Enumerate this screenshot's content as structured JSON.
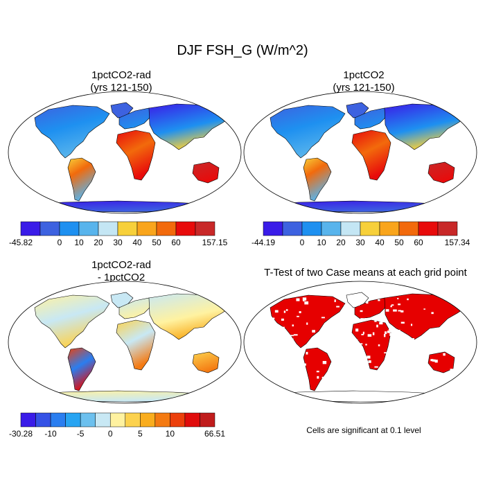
{
  "main_title": "DJF FSH_G (W/m^2)",
  "panels": [
    {
      "id": "a",
      "title_line1": "1pctCO2-rad",
      "title_line2": "(yrs 121-150)"
    },
    {
      "id": "b",
      "title_line1": "1pctCO2",
      "title_line2": "(yrs 121-150)"
    },
    {
      "id": "c",
      "title_line1": "1pctCO2-rad",
      "title_line2": "- 1pctCO2"
    },
    {
      "id": "d",
      "title_line1": "T-Test of two Case means at each grid point",
      "title_line2": ""
    }
  ],
  "note": "Cells are significant at 0.1 level",
  "chart_data": [
    {
      "type": "heatmap",
      "title": "1pctCO2-rad (yrs 121-150)",
      "colorbar": {
        "colors": [
          "#3a1ce8",
          "#3d62e0",
          "#1e90f0",
          "#58b4ec",
          "#c4e6f4",
          "#f7d03a",
          "#f9a51c",
          "#f26a0c",
          "#e80b0b",
          "#c82828"
        ],
        "labels": [
          "-45.82",
          "",
          "0",
          "10",
          "20",
          "30",
          "40",
          "50",
          "60",
          "157.15"
        ],
        "min": -45.82,
        "max": 157.15
      }
    },
    {
      "type": "heatmap",
      "title": "1pctCO2 (yrs 121-150)",
      "colorbar": {
        "colors": [
          "#3a1ce8",
          "#3d62e0",
          "#1e90f0",
          "#58b4ec",
          "#c4e6f4",
          "#f7d03a",
          "#f9a51c",
          "#f26a0c",
          "#e80b0b",
          "#c82828"
        ],
        "labels": [
          "-44.19",
          "",
          "0",
          "10",
          "20",
          "30",
          "40",
          "50",
          "60",
          "157.34"
        ],
        "min": -44.19,
        "max": 157.34
      }
    },
    {
      "type": "heatmap",
      "title": "1pctCO2-rad - 1pctCO2",
      "colorbar": {
        "colors": [
          "#3a1ce8",
          "#3552e6",
          "#2a7ef0",
          "#27a4f2",
          "#6cc0ee",
          "#c8e8f4",
          "#fff2a0",
          "#fcd24e",
          "#f9ad1e",
          "#f47a12",
          "#ec400c",
          "#e00c0c",
          "#c01c1c"
        ],
        "labels": [
          "-30.28",
          "",
          "-10",
          "",
          "-5",
          "",
          "0",
          "",
          "5",
          "",
          "10",
          "",
          "66.51"
        ],
        "min": -30.28,
        "max": 66.51
      }
    },
    {
      "type": "heatmap",
      "title": "T-Test of two Case means at each grid point",
      "significant_color": "#e60000"
    }
  ]
}
